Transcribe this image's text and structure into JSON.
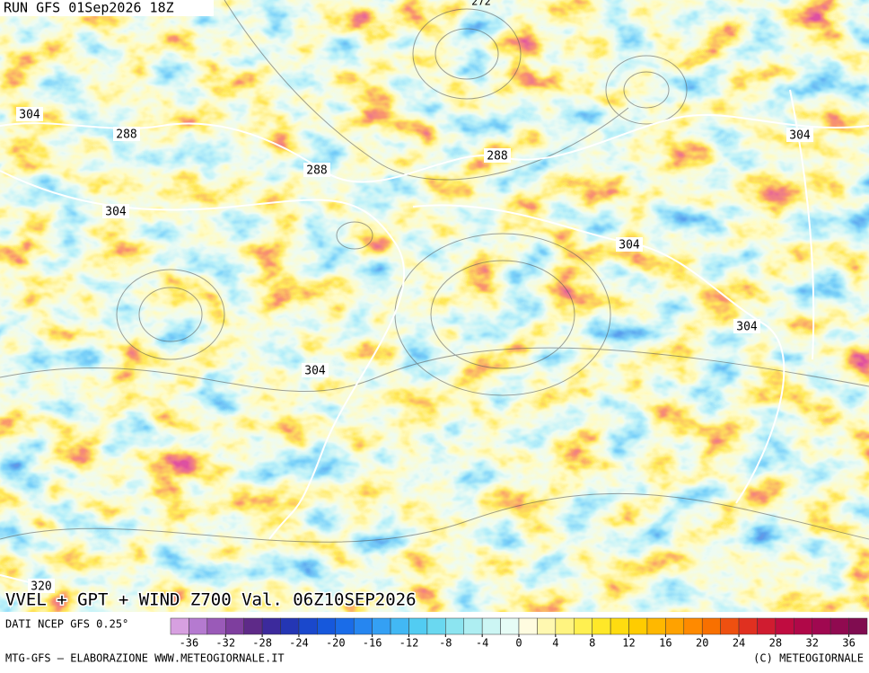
{
  "header": {
    "run": "RUN GFS 01Sep2026 18Z"
  },
  "map": {
    "title": "VVEL + GPT + WIND Z700 Val. 06Z10SEP2026",
    "contour_labels": [
      272,
      304,
      288,
      288,
      288,
      304,
      304,
      304,
      304,
      304,
      320
    ]
  },
  "colorbar": {
    "source": "DATI NCEP GFS 0.25°",
    "range": [
      -38,
      38
    ],
    "ticks": [
      -36,
      -32,
      -28,
      -24,
      -20,
      -16,
      -12,
      -8,
      -4,
      0,
      4,
      8,
      12,
      16,
      20,
      24,
      28,
      32,
      36
    ],
    "colors": [
      "#d7a0e0",
      "#b57ad0",
      "#9a5ab8",
      "#7e3e9e",
      "#5e2a88",
      "#3c2a9c",
      "#2436b4",
      "#1a48cc",
      "#1658dc",
      "#1a6ce8",
      "#2686f0",
      "#34a0f4",
      "#42b8f4",
      "#52ccf2",
      "#6ad8f0",
      "#8ce4f0",
      "#aeeef2",
      "#ccf6f4",
      "#e6fcf6",
      "#fffce0",
      "#fff8b0",
      "#fff480",
      "#fff050",
      "#ffe828",
      "#ffdc10",
      "#ffcc00",
      "#ffb800",
      "#ffa200",
      "#ff8a00",
      "#f87000",
      "#ee5010",
      "#e03020",
      "#d01c30",
      "#c00c40",
      "#b00848",
      "#a00850",
      "#900a50",
      "#800c50",
      "#700c50"
    ]
  },
  "footer": {
    "left": "MTG-GFS — ELABORAZIONE WWW.METEOGIORNALE.IT",
    "right": "(C) METEOGIORNALE"
  }
}
